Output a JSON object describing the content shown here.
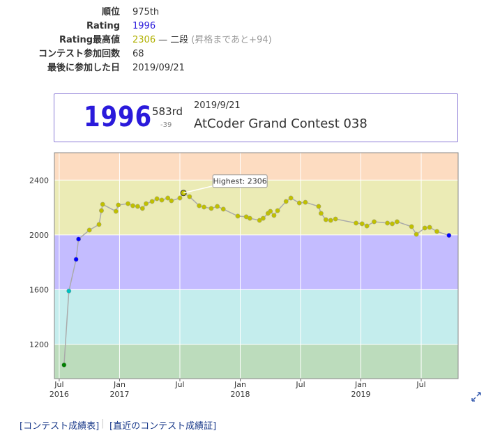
{
  "profile": {
    "rows": [
      {
        "label": "順位",
        "value": "975th"
      },
      {
        "label": "Rating",
        "value": "1996"
      },
      {
        "label": "Rating最高値",
        "value": "2306",
        "rank": "— 二段",
        "note": "(昇格まであと+94)"
      },
      {
        "label": "コンテスト参加回数",
        "value": "68"
      },
      {
        "label": "最後に参加した日",
        "value": "2019/09/21"
      }
    ]
  },
  "card": {
    "rating": "1996",
    "rank": "583rd",
    "diff": "-39",
    "date": "2019/9/21",
    "contest": "AtCoder Grand Contest 038"
  },
  "chart_data": {
    "type": "line",
    "color": "#aaaaaa",
    "grid": true,
    "annotation": "Highest: 2306",
    "xlim": [
      2016.46,
      2019.806
    ],
    "ylim": [
      950,
      2600
    ],
    "xticks": [
      {
        "value": 2016.5,
        "label": "Jul 2016"
      },
      {
        "value": 2017,
        "label": "Jan 2017"
      },
      {
        "value": 2017.5,
        "label": "Jul"
      },
      {
        "value": 2018,
        "label": "Jan 2018"
      },
      {
        "value": 2018.5,
        "label": "Jul"
      },
      {
        "value": 2019,
        "label": "Jan 2019"
      },
      {
        "value": 2019.5,
        "label": "Jul"
      }
    ],
    "yticks": [
      1200,
      1600,
      2000,
      2400
    ],
    "bands": [
      {
        "from": 2400,
        "color": "#fddcc1",
        "point_color": "#ff8000"
      },
      {
        "from": 2000,
        "color": "#ebebb5",
        "point_color": "#c0c000"
      },
      {
        "from": 1600,
        "color": "#c4bcff",
        "point_color": "#0000ff"
      },
      {
        "from": 1200,
        "color": "#c4eded",
        "point_color": "#00c0c0"
      },
      {
        "from": 950,
        "color": "#bcdcbc",
        "point_color": "#008000"
      }
    ],
    "x": [
      2016.54,
      2016.58,
      2016.64,
      2016.66,
      2016.75,
      2016.83,
      2016.85,
      2016.86,
      2016.97,
      2016.99,
      2017.07,
      2017.11,
      2017.15,
      2017.19,
      2017.22,
      2017.27,
      2017.31,
      2017.35,
      2017.4,
      2017.43,
      2017.5,
      2017.53,
      2017.58,
      2017.66,
      2017.7,
      2017.76,
      2017.81,
      2017.86,
      2017.98,
      2018.05,
      2018.08,
      2018.16,
      2018.19,
      2018.23,
      2018.25,
      2018.28,
      2018.31,
      2018.38,
      2018.42,
      2018.49,
      2018.54,
      2018.65,
      2018.67,
      2018.71,
      2018.75,
      2018.79,
      2018.96,
      2019.01,
      2019.05,
      2019.11,
      2019.22,
      2019.26,
      2019.3,
      2019.42,
      2019.46,
      2019.53,
      2019.57,
      2019.63,
      2019.73
    ],
    "values": [
      1050,
      1590,
      1821,
      1969,
      2035,
      2076,
      2177,
      2223,
      2172,
      2218,
      2228,
      2213,
      2208,
      2193,
      2228,
      2244,
      2264,
      2254,
      2269,
      2249,
      2269,
      2306,
      2279,
      2213,
      2203,
      2193,
      2208,
      2188,
      2137,
      2132,
      2121,
      2106,
      2121,
      2157,
      2172,
      2142,
      2177,
      2244,
      2269,
      2233,
      2238,
      2208,
      2157,
      2111,
      2106,
      2116,
      2086,
      2081,
      2065,
      2096,
      2086,
      2081,
      2096,
      2060,
      2004,
      2050,
      2055,
      2025,
      1996
    ]
  },
  "links": [
    "[コンテスト成績表]",
    "[直近のコンテスト成績証]"
  ]
}
